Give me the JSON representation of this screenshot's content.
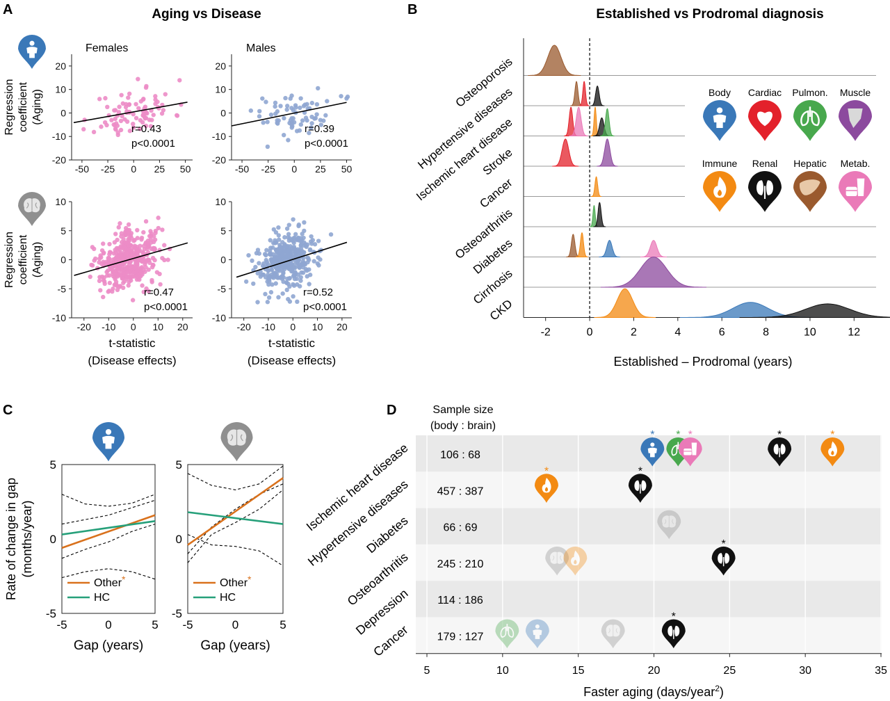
{
  "panels": {
    "A": {
      "label": "A",
      "title": "Aging vs Disease"
    },
    "B": {
      "label": "B",
      "title": "Established vs Prodromal diagnosis"
    },
    "C": {
      "label": "C"
    },
    "D": {
      "label": "D"
    }
  },
  "icons": {
    "body": {
      "name": "Body",
      "color": "#3a78b8",
      "glyph": "person"
    },
    "cardiac": {
      "name": "Cardiac",
      "color": "#e3212b",
      "glyph": "heart"
    },
    "pulmon": {
      "name": "Pulmon.",
      "color": "#48a84d",
      "glyph": "lungs"
    },
    "muscle": {
      "name": "Muscle",
      "color": "#8c4a9e",
      "glyph": "muscle"
    },
    "immune": {
      "name": "Immune",
      "color": "#f38a12",
      "glyph": "flame"
    },
    "renal": {
      "name": "Renal",
      "color": "#111111",
      "glyph": "kidney"
    },
    "hepatic": {
      "name": "Hepatic",
      "color": "#9a5a2e",
      "glyph": "liver"
    },
    "metab": {
      "name": "Metab.",
      "color": "#ea7ab8",
      "glyph": "food"
    },
    "brain": {
      "name": "Brain",
      "color": "#8f8f8f",
      "glyph": "brain"
    }
  },
  "chart_data": [
    {
      "type": "scatter",
      "id": "A1",
      "panel_label": "Females",
      "ylabel": [
        "Regression",
        "coefficient",
        "(Aging)"
      ],
      "xlim": [
        -60,
        57
      ],
      "ylim": [
        -20,
        25
      ],
      "xticks": [
        "-50",
        "-25",
        "0",
        "25",
        "50"
      ],
      "yticks": [
        "-20",
        "-10",
        "0",
        "10",
        "20"
      ],
      "color": "#ec8cc6",
      "fit": {
        "x": [
          -58,
          52
        ],
        "y": [
          -4.1,
          4.6
        ]
      },
      "stats": [
        "r=0.43",
        "p<0.0001"
      ],
      "icon": "body"
    },
    {
      "type": "scatter",
      "id": "A2",
      "panel_label": "Males",
      "xlim": [
        -60,
        55
      ],
      "ylim": [
        -20,
        25
      ],
      "xticks": [
        "-50",
        "-25",
        "0",
        "25",
        "50"
      ],
      "yticks": [
        "-20",
        "-10",
        "0",
        "10",
        "20"
      ],
      "color": "#8fa6d2",
      "fit": {
        "x": [
          -60,
          50
        ],
        "y": [
          -5.5,
          4.5
        ]
      },
      "stats": [
        "r=0.39",
        "p<0.0001"
      ]
    },
    {
      "type": "scatter",
      "id": "A3",
      "ylabel": [
        "Regression",
        "coefficient",
        "(Aging)"
      ],
      "xlabel": [
        "t-statistic",
        "(Disease effects)"
      ],
      "xlim": [
        -25,
        24
      ],
      "ylim": [
        -10,
        10
      ],
      "xticks": [
        "-20",
        "-10",
        "0",
        "10",
        "20"
      ],
      "yticks": [
        "-10",
        "-5",
        "0",
        "5",
        "10"
      ],
      "color": "#ec8cc6",
      "fit": {
        "x": [
          -24,
          22
        ],
        "y": [
          -2.7,
          2.9
        ]
      },
      "stats": [
        "r=0.47",
        "p<0.0001"
      ],
      "icon": "brain"
    },
    {
      "type": "scatter",
      "id": "A4",
      "xlabel": [
        "t-statistic",
        "(Disease effects)"
      ],
      "xlim": [
        -25,
        24
      ],
      "ylim": [
        -10,
        10
      ],
      "xticks": [
        "-20",
        "-10",
        "0",
        "10",
        "20"
      ],
      "yticks": [
        "-10",
        "-5",
        "0",
        "5",
        "10"
      ],
      "color": "#8fa6d2",
      "fit": {
        "x": [
          -23,
          22
        ],
        "y": [
          -3.0,
          3.0
        ]
      },
      "stats": [
        "r=0.52",
        "p<0.0001"
      ]
    },
    {
      "type": "area",
      "id": "B",
      "subtype": "ridgeline",
      "xlabel": "Established – Prodromal (years)",
      "xlim": [
        -3,
        13
      ],
      "xticks": [
        "-2",
        "0",
        "2",
        "4",
        "6",
        "8",
        "10",
        "12"
      ],
      "rows": [
        "Osteoporosis",
        "Hypertensive diseases",
        "Ischemic heart disease",
        "Stroke",
        "Cancer",
        "Osteoarthritis",
        "Diabetes",
        "Cirrhosis",
        "CKD"
      ],
      "peaks": [
        {
          "row": 0,
          "organ": "hepatic",
          "mean": -1.6,
          "sd": 0.3,
          "height": 1.0
        },
        {
          "row": 1,
          "organ": "hepatic",
          "mean": -0.6,
          "sd": 0.07,
          "height": 0.8
        },
        {
          "row": 1,
          "organ": "cardiac",
          "mean": -0.25,
          "sd": 0.06,
          "height": 0.8
        },
        {
          "row": 1,
          "organ": "renal",
          "mean": 0.35,
          "sd": 0.08,
          "height": 0.65
        },
        {
          "row": 2,
          "organ": "cardiac",
          "mean": -0.85,
          "sd": 0.08,
          "height": 0.95
        },
        {
          "row": 2,
          "organ": "metab",
          "mean": -0.5,
          "sd": 0.11,
          "height": 0.95
        },
        {
          "row": 2,
          "organ": "immune",
          "mean": 0.25,
          "sd": 0.05,
          "height": 0.95
        },
        {
          "row": 2,
          "organ": "renal",
          "mean": 0.55,
          "sd": 0.1,
          "height": 0.6
        },
        {
          "row": 2,
          "organ": "pulmon",
          "mean": 0.8,
          "sd": 0.08,
          "height": 0.9
        },
        {
          "row": 3,
          "organ": "cardiac",
          "mean": -1.1,
          "sd": 0.15,
          "height": 0.9
        },
        {
          "row": 3,
          "organ": "muscle",
          "mean": 0.8,
          "sd": 0.12,
          "height": 0.9
        },
        {
          "row": 4,
          "organ": "immune",
          "mean": 0.3,
          "sd": 0.06,
          "height": 0.65
        },
        {
          "row": 5,
          "organ": "pulmon",
          "mean": 0.2,
          "sd": 0.05,
          "height": 0.7
        },
        {
          "row": 5,
          "organ": "renal",
          "mean": 0.45,
          "sd": 0.07,
          "height": 0.8
        },
        {
          "row": 6,
          "organ": "hepatic",
          "mean": -0.75,
          "sd": 0.08,
          "height": 0.75
        },
        {
          "row": 6,
          "organ": "immune",
          "mean": -0.35,
          "sd": 0.07,
          "height": 0.8
        },
        {
          "row": 6,
          "organ": "body",
          "mean": 0.9,
          "sd": 0.12,
          "height": 0.55
        },
        {
          "row": 6,
          "organ": "metab",
          "mean": 2.9,
          "sd": 0.15,
          "height": 0.55
        },
        {
          "row": 7,
          "organ": "muscle",
          "mean": 2.9,
          "sd": 0.6,
          "height": 1.0
        },
        {
          "row": 8,
          "organ": "immune",
          "mean": 1.6,
          "sd": 0.35,
          "height": 0.95
        },
        {
          "row": 8,
          "organ": "body",
          "mean": 7.3,
          "sd": 0.8,
          "height": 0.5
        },
        {
          "row": 8,
          "organ": "renal",
          "mean": 10.8,
          "sd": 1.0,
          "height": 0.45
        }
      ],
      "legend_order": [
        "body",
        "cardiac",
        "pulmon",
        "muscle",
        "immune",
        "renal",
        "hepatic",
        "metab"
      ]
    },
    {
      "type": "line",
      "id": "C1",
      "xlabel": "Gap (years)",
      "ylabel": [
        "Rate of change in gap",
        "(months/year)"
      ],
      "xlim": [
        -5,
        5
      ],
      "ylim": [
        -5,
        5
      ],
      "xticks": [
        "-5",
        "0",
        "5"
      ],
      "yticks": [
        "-5",
        "0",
        "5"
      ],
      "series": [
        {
          "name": "Other",
          "star": "*",
          "color": "#d9711c",
          "x": [
            -5,
            5
          ],
          "y": [
            -0.6,
            1.6
          ]
        },
        {
          "name": "HC",
          "color": "#26a07a",
          "x": [
            -5,
            5
          ],
          "y": [
            0.3,
            1.2
          ]
        }
      ],
      "ci": [
        {
          "x": [
            -5,
            -2.5,
            0,
            2.5,
            5
          ],
          "y": [
            3.0,
            2.35,
            2.2,
            2.4,
            3.0
          ]
        },
        {
          "x": [
            -5,
            -2.5,
            0,
            2.5,
            5
          ],
          "y": [
            1.0,
            1.3,
            1.6,
            2.1,
            2.6
          ]
        },
        {
          "x": [
            -5,
            -2.5,
            0,
            2.5,
            5
          ],
          "y": [
            -1.3,
            -0.7,
            -0.2,
            0.5,
            1.0
          ]
        },
        {
          "x": [
            -5,
            -2.5,
            0,
            2.5,
            5
          ],
          "y": [
            -2.6,
            -2.2,
            -2.0,
            -2.2,
            -2.7
          ]
        }
      ],
      "icon": "body"
    },
    {
      "type": "line",
      "id": "C2",
      "xlabel": "Gap (years)",
      "xlim": [
        -5,
        5
      ],
      "ylim": [
        -5,
        5
      ],
      "xticks": [
        "-5",
        "0",
        "5"
      ],
      "yticks": [
        "-5",
        "0",
        "5"
      ],
      "series": [
        {
          "name": "Other",
          "star": "*",
          "color": "#d9711c",
          "x": [
            -5,
            5
          ],
          "y": [
            -0.4,
            4.1
          ]
        },
        {
          "name": "HC",
          "color": "#26a07a",
          "x": [
            -5,
            5
          ],
          "y": [
            1.8,
            1.0
          ]
        }
      ],
      "ci": [
        {
          "x": [
            -5,
            -2.5,
            0,
            2.5,
            5
          ],
          "y": [
            4.4,
            3.6,
            3.3,
            3.7,
            4.9
          ]
        },
        {
          "x": [
            -5,
            -2.5,
            0,
            2.5,
            5
          ],
          "y": [
            -1.0,
            0.8,
            2.0,
            3.0,
            3.7
          ]
        },
        {
          "x": [
            -5,
            -2.5,
            0,
            2.5,
            5
          ],
          "y": [
            -1.6,
            0.3,
            1.1,
            2.0,
            3.3
          ]
        },
        {
          "x": [
            -5,
            -2.5,
            0,
            2.5,
            5
          ],
          "y": [
            0.3,
            -0.4,
            -0.5,
            -0.8,
            -1.8
          ]
        }
      ],
      "icon": "brain"
    },
    {
      "type": "scatter",
      "id": "D",
      "xlabel": "Faster aging (days/year",
      "xlabel_sup": "2",
      "xlabel_close": ")",
      "xlim": [
        5,
        35
      ],
      "xticks": [
        "5",
        "10",
        "15",
        "20",
        "25",
        "30",
        "35"
      ],
      "header": [
        "Sample size",
        "(body : brain)"
      ],
      "rows": [
        {
          "name": "Ischemic heart disease",
          "sample": "106 : 68"
        },
        {
          "name": "Hypertensive diseases",
          "sample": "457 : 387"
        },
        {
          "name": "Diabetes",
          "sample": "66 : 69"
        },
        {
          "name": "Osteoarthritis",
          "sample": "245 : 210"
        },
        {
          "name": "Depression",
          "sample": "114 : 186"
        },
        {
          "name": "Cancer",
          "sample": "179 : 127"
        }
      ],
      "points": [
        {
          "row": 0,
          "x": 19.9,
          "organ": "body",
          "sig": true
        },
        {
          "row": 0,
          "x": 21.6,
          "organ": "pulmon",
          "sig": true
        },
        {
          "row": 0,
          "x": 22.4,
          "organ": "metab",
          "sig": true
        },
        {
          "row": 0,
          "x": 28.3,
          "organ": "renal",
          "sig": true
        },
        {
          "row": 0,
          "x": 31.8,
          "organ": "immune",
          "sig": true
        },
        {
          "row": 1,
          "x": 12.9,
          "organ": "immune",
          "sig": true
        },
        {
          "row": 1,
          "x": 19.1,
          "organ": "renal",
          "sig": true
        },
        {
          "row": 2,
          "x": 21.0,
          "organ": "brain",
          "sig": false
        },
        {
          "row": 3,
          "x": 13.6,
          "organ": "brain",
          "sig": false
        },
        {
          "row": 3,
          "x": 14.8,
          "organ": "immune",
          "sig": false
        },
        {
          "row": 3,
          "x": 24.6,
          "organ": "renal",
          "sig": true
        },
        {
          "row": 5,
          "x": 10.3,
          "organ": "pulmon",
          "sig": false
        },
        {
          "row": 5,
          "x": 12.3,
          "organ": "body",
          "sig": false
        },
        {
          "row": 5,
          "x": 17.3,
          "organ": "brain",
          "sig": false
        },
        {
          "row": 5,
          "x": 21.3,
          "organ": "renal",
          "sig": true
        }
      ]
    }
  ]
}
